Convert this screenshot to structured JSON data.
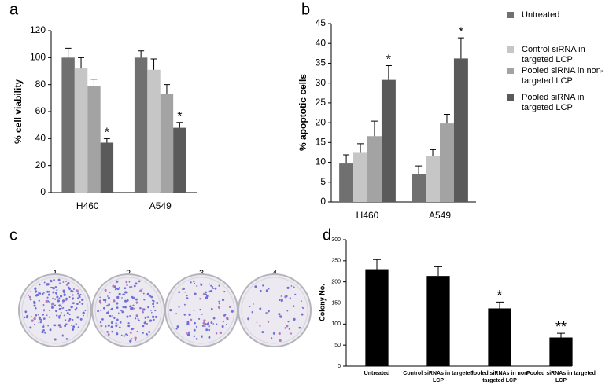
{
  "chart_data": [
    {
      "type": "bar",
      "panel_label": "a",
      "y_label": "% cell viability",
      "categories": [
        "H460",
        "A549"
      ],
      "series": [
        {
          "color": "#707070",
          "values": [
            100,
            100
          ],
          "errors": [
            7,
            5
          ]
        },
        {
          "color": "#c6c6c6",
          "values": [
            92,
            91
          ],
          "errors": [
            8,
            8
          ]
        },
        {
          "color": "#a3a3a3",
          "values": [
            79,
            73
          ],
          "errors": [
            5,
            7
          ]
        },
        {
          "color": "#5a5a5a",
          "values": [
            37,
            48
          ],
          "errors": [
            3,
            4
          ],
          "markers": [
            "*",
            "*"
          ]
        }
      ],
      "ylim": [
        0,
        120
      ],
      "yticks": [
        0,
        20,
        40,
        60,
        80,
        100,
        120
      ]
    },
    {
      "type": "bar",
      "panel_label": "b",
      "y_label": "% apoptotic cells",
      "categories": [
        "H460",
        "A549"
      ],
      "series": [
        {
          "name": "Untreated",
          "color": "#707070",
          "values": [
            9.7,
            7.1
          ],
          "errors": [
            2.2,
            2.0
          ]
        },
        {
          "name": "Control siRNA in targeted LCP",
          "color": "#c6c6c6",
          "values": [
            12.4,
            11.6
          ],
          "errors": [
            2.3,
            1.6
          ]
        },
        {
          "name": "Pooled siRNA in non-targeted LCP",
          "color": "#a3a3a3",
          "values": [
            16.6,
            19.8
          ],
          "errors": [
            3.8,
            2.3
          ]
        },
        {
          "name": "Pooled siRNA in targeted LCP",
          "color": "#5a5a5a",
          "values": [
            30.8,
            36.2
          ],
          "errors": [
            3.6,
            5.2
          ],
          "markers": [
            "*",
            "*"
          ]
        }
      ],
      "ylim": [
        0,
        45
      ],
      "yticks": [
        0,
        5,
        10,
        15,
        20,
        25,
        30,
        35,
        40,
        45
      ],
      "legend": "right"
    },
    {
      "type": "bar",
      "panel_label": "d",
      "y_label": "Colony No.",
      "categories": [
        "Untreated",
        "Control siRNAs in targeted LCP",
        "Pooled siRNAs in non-targeted LCP",
        "Pooled siRNAs in targeted LCP"
      ],
      "series": [
        {
          "color": "#000000",
          "values": [
            230,
            214,
            137,
            68
          ],
          "errors": [
            23,
            22,
            15,
            10
          ],
          "markers": [
            null,
            null,
            "*",
            "**"
          ]
        }
      ],
      "ylim": [
        0,
        300
      ],
      "yticks": [
        0,
        50,
        100,
        150,
        200,
        250,
        300
      ]
    }
  ],
  "plates": {
    "panel_label": "c",
    "labels": [
      "1",
      "2",
      "3",
      "4"
    ]
  }
}
